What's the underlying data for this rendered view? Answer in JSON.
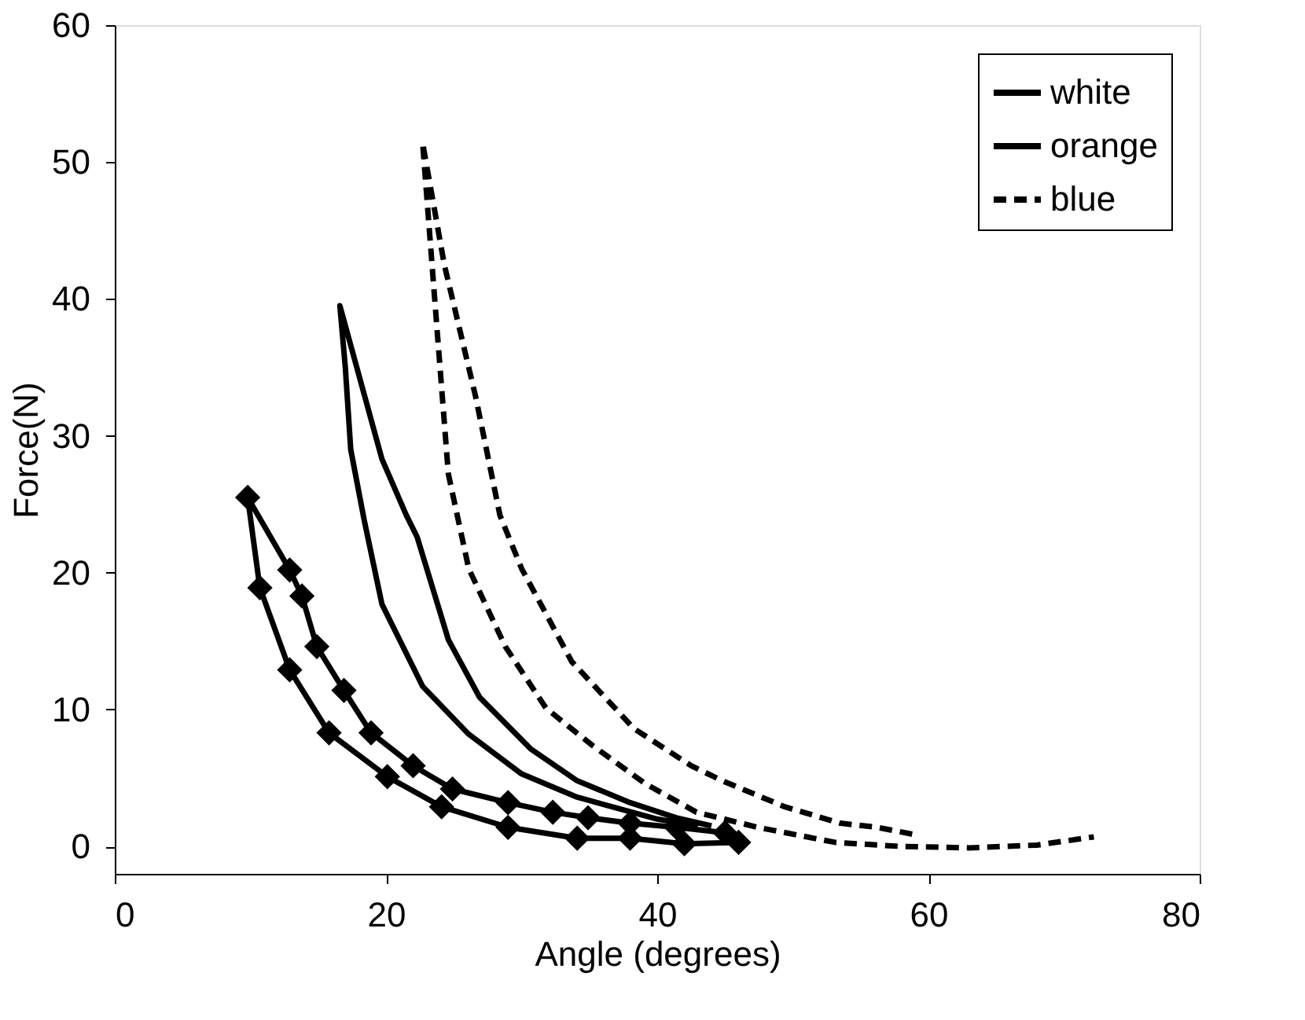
{
  "chart_data": {
    "type": "line",
    "xlabel": "Angle (degrees)",
    "ylabel": "Force(N)",
    "xlim": [
      0,
      80
    ],
    "xticks": [
      0,
      20,
      40,
      60,
      80
    ],
    "ylim": [
      -2,
      60
    ],
    "yticks": [
      0,
      10,
      20,
      30,
      40,
      50,
      60
    ],
    "grid": false,
    "legend": "top right",
    "series": [
      {
        "name": "white",
        "color": "#000000",
        "marker": "diamond",
        "line_style": "solid",
        "x": [
          46,
          42,
          38,
          34.1,
          29,
          24.1,
          20.1,
          15.8,
          12.9,
          10.7,
          9.8,
          12.9,
          13.8,
          14.9,
          16.9,
          18.9,
          22,
          24.9,
          29,
          32.3,
          34.9,
          38,
          41.4,
          45
        ],
        "values": [
          0.3,
          0.2,
          0.6,
          0.6,
          1.4,
          2.9,
          5.1,
          8.3,
          12.9,
          18.9,
          25.5,
          20.2,
          18.3,
          14.6,
          11.4,
          8.3,
          5.9,
          4.2,
          3.2,
          2.5,
          2.1,
          1.7,
          1.4,
          1
        ]
      },
      {
        "name": "orange",
        "color": "#000000",
        "marker": "none",
        "line_style": "solid",
        "x": [
          43,
          40,
          34.1,
          30,
          26.1,
          22.7,
          19.7,
          18.4,
          17.4,
          17,
          16.6,
          19.7,
          21.5,
          22.3,
          24.6,
          26.9,
          30.7,
          34.1,
          38,
          41.4,
          44
        ],
        "values": [
          1.5,
          2,
          3.6,
          5.3,
          8.2,
          11.7,
          17.7,
          23.8,
          29,
          35,
          39.5,
          28.3,
          24.2,
          22.6,
          15.1,
          10.9,
          7.1,
          4.8,
          3.2,
          2.1,
          1.5
        ]
      },
      {
        "name": "blue",
        "color": "#000000",
        "marker": "none",
        "line_style": "dashed",
        "x": [
          58.8,
          56.2,
          53.5,
          49.4,
          44.8,
          42.5,
          38.3,
          33.7,
          30,
          28.4,
          26.6,
          24.3,
          22.7,
          23.7,
          24.6,
          26.1,
          28.8,
          31.8,
          35.2,
          39.1,
          42.9,
          47.4,
          53.1,
          58,
          63,
          68,
          72.2
        ],
        "values": [
          0.9,
          1.4,
          1.7,
          2.9,
          4.8,
          5.9,
          8.6,
          13.5,
          20.3,
          24.2,
          32.9,
          42.5,
          51.4,
          38.6,
          27.2,
          20.3,
          14.6,
          10.1,
          7.4,
          4.6,
          2.5,
          1.4,
          0.3,
          0,
          -0.1,
          0.1,
          0.7
        ]
      }
    ]
  }
}
